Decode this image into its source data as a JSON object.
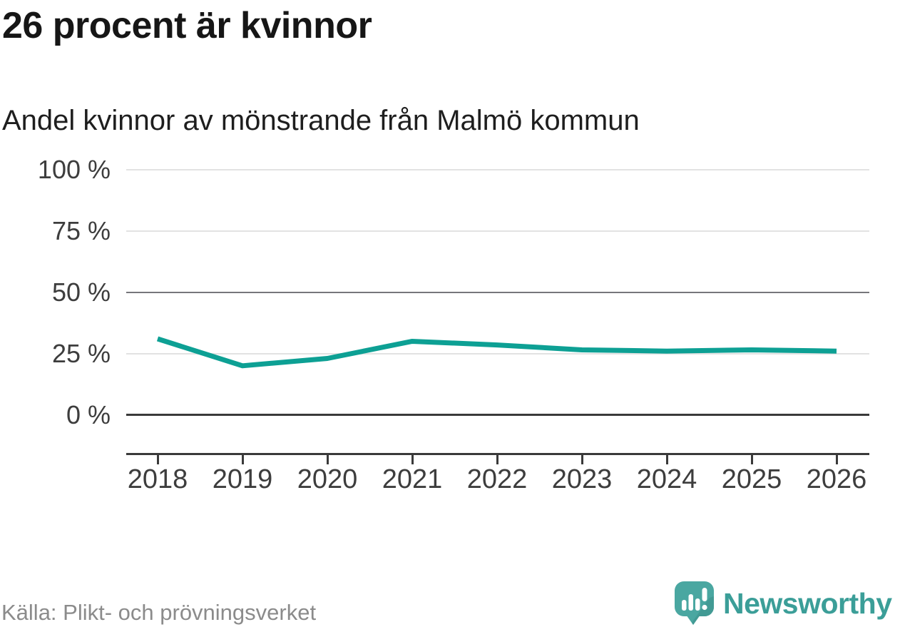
{
  "header": {
    "title": "26 procent är kvinnor",
    "subtitle": "Andel kvinnor av mönstrande från Malmö kommun"
  },
  "chart_data": {
    "type": "line",
    "title": "26 procent är kvinnor",
    "subtitle": "Andel kvinnor av mönstrande från Malmö kommun",
    "x": [
      "2018",
      "2019",
      "2020",
      "2021",
      "2022",
      "2023",
      "2024",
      "2025",
      "2026"
    ],
    "series": [
      {
        "name": "Andel kvinnor av mönstrande",
        "values": [
          31,
          20,
          23,
          30,
          28.5,
          26.5,
          26,
          26.5,
          26
        ]
      }
    ],
    "unit": "%",
    "ylim": [
      0,
      100
    ],
    "y_ticks": [
      {
        "value": 100,
        "label": "100 %",
        "emphasis": "light"
      },
      {
        "value": 75,
        "label": "75 %",
        "emphasis": "light"
      },
      {
        "value": 50,
        "label": "50 %",
        "emphasis": "medium"
      },
      {
        "value": 25,
        "label": "25 %",
        "emphasis": "light"
      },
      {
        "value": 0,
        "label": "0 %",
        "emphasis": "strong"
      }
    ],
    "grid": true,
    "legend": "none"
  },
  "colors": {
    "line": "#0da094",
    "brand_teal": "#4aa7a1",
    "brand_text": "#3b9e98",
    "axis": "#3a3a3a",
    "grid_light": "#e2e2e2",
    "grid_medium": "#76767b"
  },
  "footer": {
    "source": "Källa: Plikt- och prövningsverket",
    "brand": "Newsworthy"
  }
}
